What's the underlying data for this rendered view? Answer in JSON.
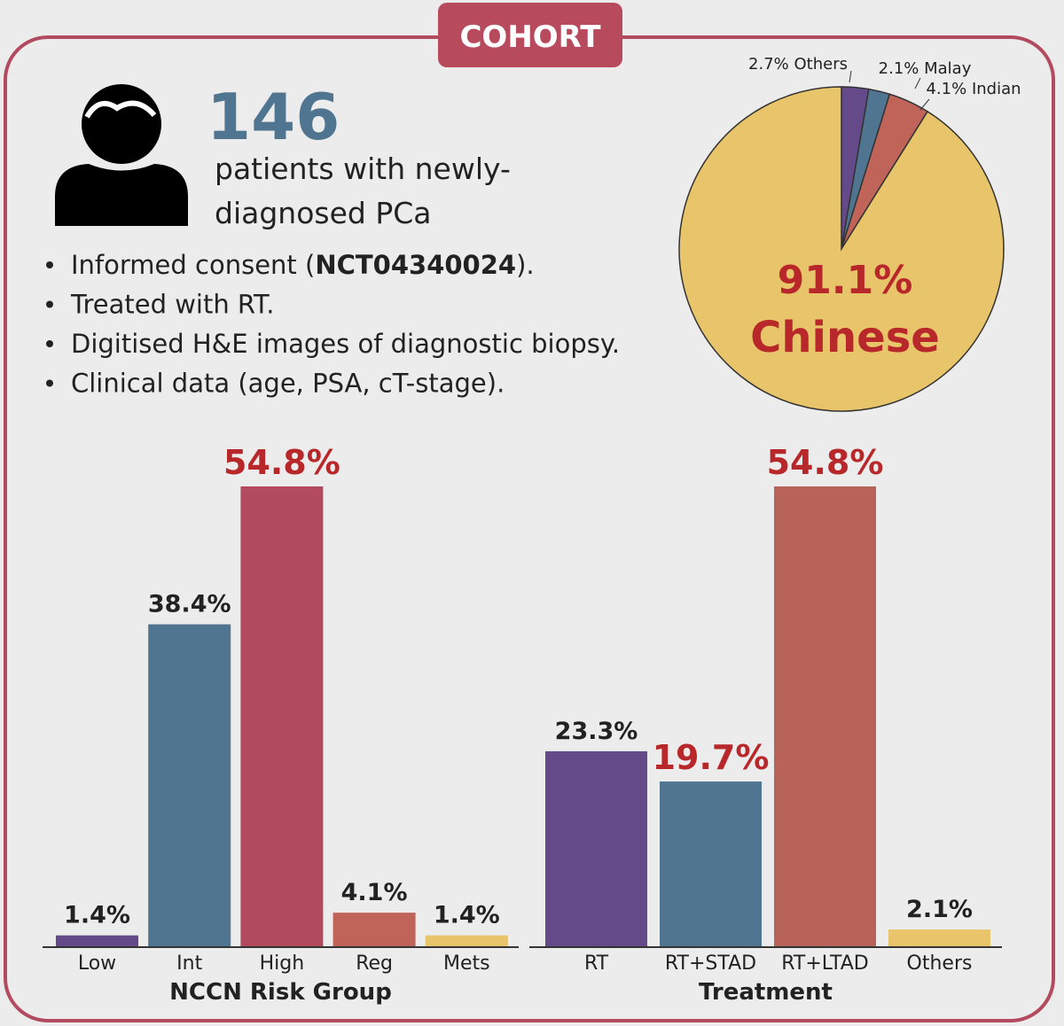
{
  "header": {
    "title": "COHORT"
  },
  "summary": {
    "count": "146",
    "description": [
      "patients with newly-",
      "diagnosed PCa"
    ],
    "bullets": [
      [
        "Informed consent (",
        "NCT04340024",
        ")."
      ],
      [
        "Treated with RT."
      ],
      [
        "Digitised H&E images of diagnostic biopsy."
      ],
      [
        "Clinical data (age, PSA, cT-stage)."
      ]
    ]
  },
  "chart_data": [
    {
      "type": "pie",
      "categories": [
        "Others",
        "Malay",
        "Indian",
        "Chinese"
      ],
      "values": [
        2.7,
        2.1,
        4.1,
        91.1
      ],
      "value_labels": [
        "2.7%",
        "2.1%",
        "4.1%",
        "91.1%"
      ],
      "colors": [
        "#654a8a",
        "#4f7590",
        "#c0645a",
        "#e8c46a"
      ]
    },
    {
      "type": "bar",
      "x_label": "NCCN Risk Group",
      "categories": [
        "Low",
        "Int",
        "High",
        "Reg",
        "Mets"
      ],
      "values": [
        1.4,
        38.4,
        54.8,
        4.1,
        1.4
      ],
      "value_labels": [
        "1.4%",
        "38.4%",
        "54.8%",
        "4.1%",
        "1.4%"
      ],
      "colors": [
        "#654a8a",
        "#4f7590",
        "#b34b60",
        "#c0645a",
        "#e8c46a"
      ],
      "value_label_colors": [
        "#222222",
        "#222222",
        "#b8282a",
        "#222222",
        "#222222"
      ]
    },
    {
      "type": "bar",
      "x_label": "Treatment",
      "categories": [
        "RT",
        "RT+STAD",
        "RT+LTAD",
        "Others"
      ],
      "values": [
        23.3,
        19.7,
        54.8,
        2.1
      ],
      "value_labels": [
        "23.3%",
        "19.7%",
        "54.8%",
        "2.1%"
      ],
      "colors": [
        "#654a8a",
        "#4f7590",
        "#b8635a",
        "#e8c46a"
      ],
      "value_label_colors": [
        "#222222",
        "#b8282a",
        "#b8282a",
        "#222222"
      ]
    }
  ]
}
